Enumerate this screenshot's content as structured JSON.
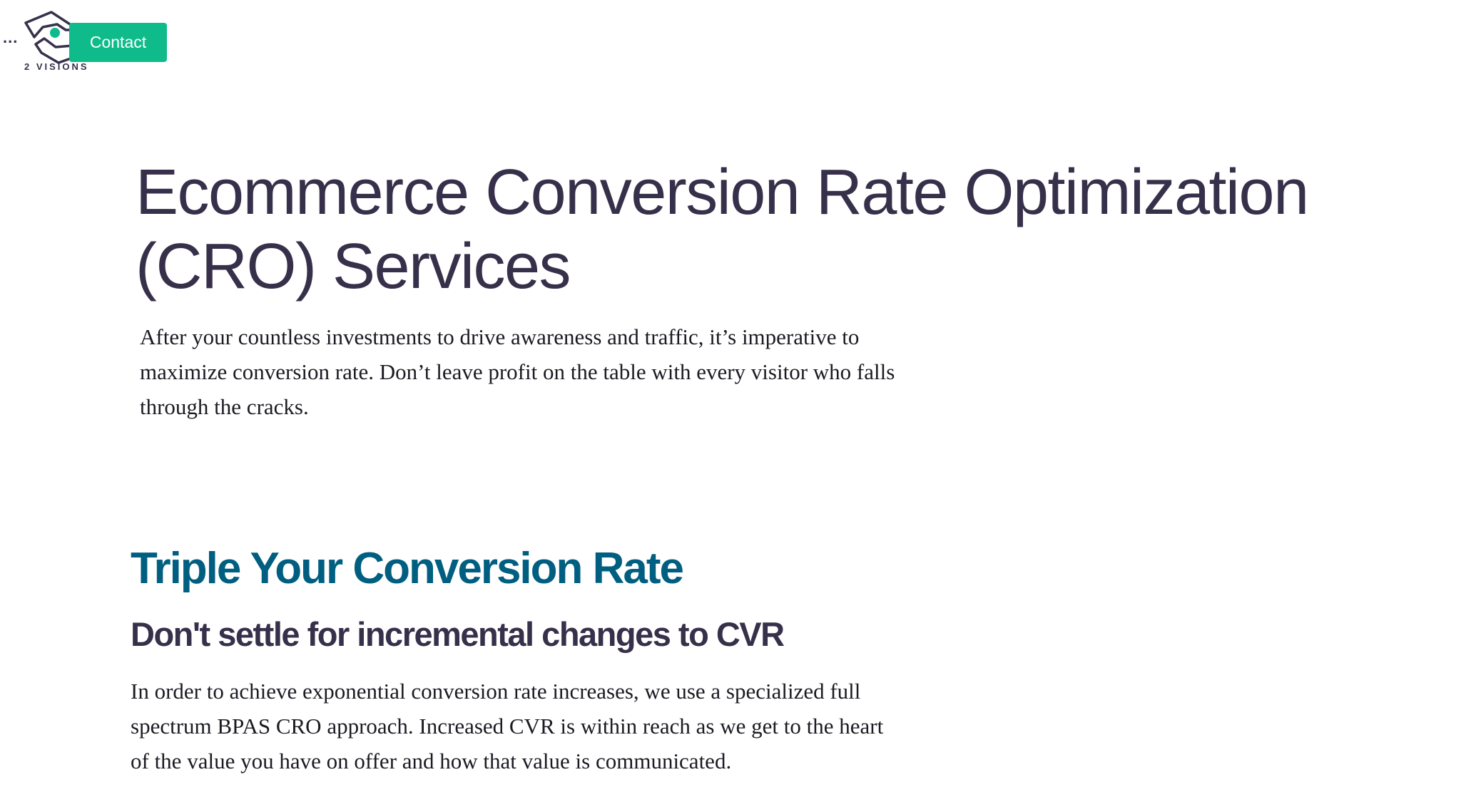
{
  "header": {
    "menu_label": "...",
    "logo_text": "2 VISIONS",
    "contact_label": "Contact"
  },
  "hero": {
    "title_lines": [
      "Ecommerce Conversion Rate Optimization",
      "(CRO) Services"
    ],
    "intro_lines": [
      "After your countless investments to drive awareness and traffic, it’s imperative to",
      "maximize conversion rate. Don’t leave profit on the table with every visitor who falls",
      "through the cracks."
    ]
  },
  "section": {
    "heading": "Triple Your Conversion Rate",
    "subheading": "Don't settle for incremental changes to CVR",
    "body_lines": [
      "In order to achieve exponential conversion rate increases, we use a specialized full",
      "spectrum BPAS CRO approach. Increased CVR is within reach as we get to the heart",
      "of the value you have on offer and how that value is communicated."
    ]
  },
  "colors": {
    "accent": "#0fbb8a",
    "heading_blue": "#005f80",
    "text_dark": "#37304a"
  },
  "icons": {
    "menu": "ellipsis-icon",
    "logo": "hands-eye-logo"
  }
}
